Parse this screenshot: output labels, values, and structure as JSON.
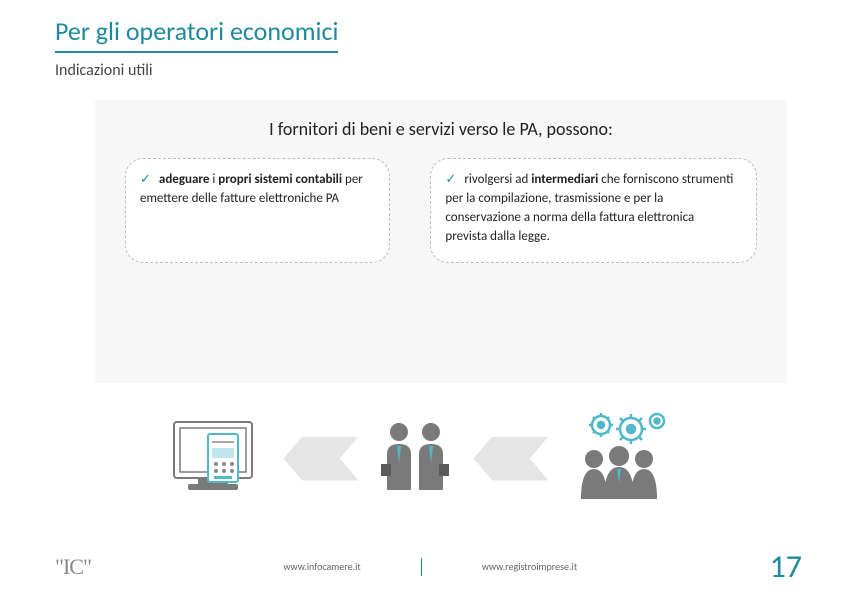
{
  "title": "Per gli operatori economici",
  "subtitle": "Indicazioni utili",
  "heading": "I fornitori di beni e servizi verso le PA, possono:",
  "card_left_html": "<span class='bold'>adeguare</span> i <span class='bold'>propri sistemi contabili</span> per emettere delle fatture elettroniche PA",
  "card_right_html": "rivolgersi ad <span class='bold'>intermediari</span> che forniscono strumenti per la compilazione, trasmissione e per la conservazione a norma della fattura elettronica prevista dalla legge.",
  "footer_link_1": "www.infocamere.it",
  "footer_link_2": "www.registroimprese.it",
  "page_number": "17",
  "logo_text": "\"IC\"",
  "colors": {
    "accent": "#1e8a9e",
    "box_bg": "#f7f7f7",
    "icon_stroke": "#7a7a7a",
    "icon_accent": "#4fb8c9",
    "arrow_fill": "#e5e5e5"
  }
}
